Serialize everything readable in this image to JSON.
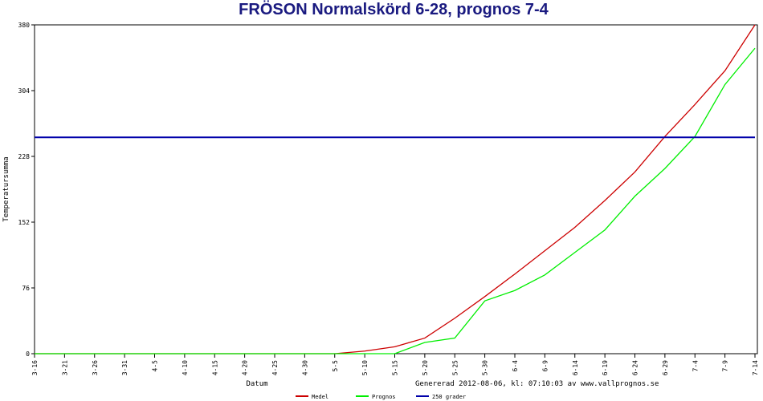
{
  "chart_data": {
    "type": "line",
    "title": "FRÖSON Normalskörd 6-28, prognos 7-4",
    "y_label": "Temperatursumma",
    "x_label": "Datum",
    "note": "Genererad 2012-08-06, kl: 07:10:03 av www.vallprognos.se",
    "categories": [
      "3-16",
      "3-21",
      "3-26",
      "3-31",
      "4-5",
      "4-10",
      "4-15",
      "4-20",
      "4-25",
      "4-30",
      "5-5",
      "5-10",
      "5-15",
      "5-20",
      "5-25",
      "5-30",
      "6-4",
      "6-9",
      "6-14",
      "6-19",
      "6-24",
      "6-29",
      "7-4",
      "7-9",
      "7-14"
    ],
    "series": [
      {
        "name": "Medel",
        "color": "#cc0000",
        "values": [
          0,
          0,
          0,
          0,
          0,
          0,
          0,
          0,
          0,
          0,
          0,
          3,
          8,
          18,
          41,
          66,
          92,
          119,
          146,
          177,
          210,
          251,
          288,
          327,
          380
        ]
      },
      {
        "name": "Prognos",
        "color": "#00ee00",
        "values": [
          0,
          0,
          0,
          0,
          0,
          0,
          0,
          0,
          0,
          0,
          0,
          0,
          0,
          13,
          18,
          61,
          73,
          91,
          117,
          143,
          182,
          214,
          251,
          311,
          353
        ]
      },
      {
        "name": "250 grader",
        "color": "#0000aa",
        "values": [
          250,
          250,
          250,
          250,
          250,
          250,
          250,
          250,
          250,
          250,
          250,
          250,
          250,
          250,
          250,
          250,
          250,
          250,
          250,
          250,
          250,
          250,
          250,
          250,
          250
        ]
      }
    ],
    "ylim": [
      0,
      380
    ],
    "yticks": [
      0,
      76,
      152,
      228,
      304,
      380
    ]
  }
}
